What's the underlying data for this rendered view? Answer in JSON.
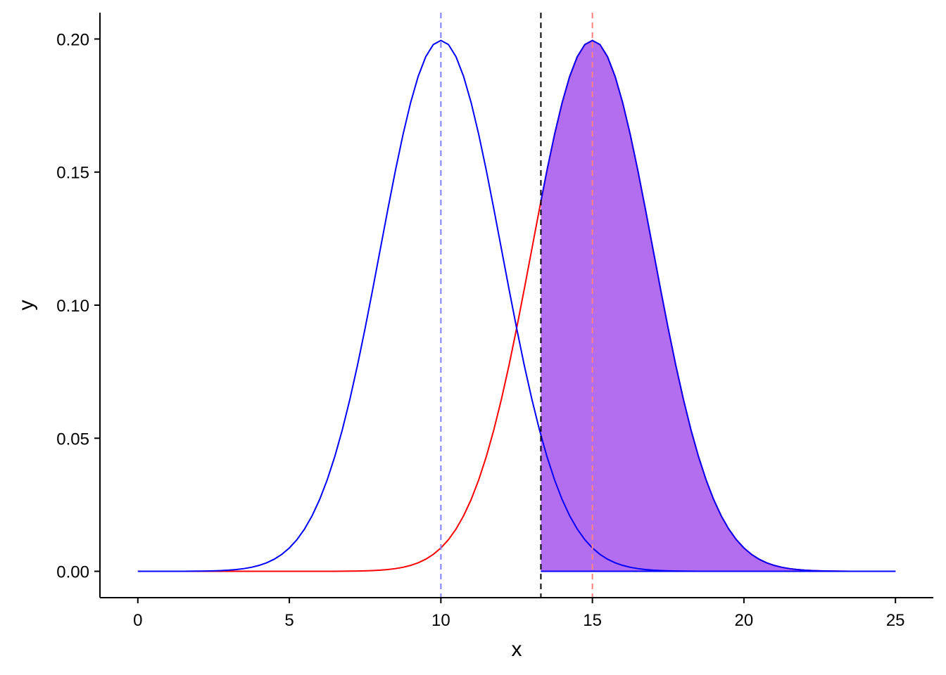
{
  "chart_data": {
    "type": "line",
    "xlabel": "x",
    "ylabel": "y",
    "xlim": [
      -1.25,
      26.25
    ],
    "ylim": [
      -0.0099,
      0.2099
    ],
    "x_ticks": [
      0,
      5,
      10,
      15,
      20,
      25
    ],
    "y_ticks": [
      0.0,
      0.05,
      0.1,
      0.15,
      0.2
    ],
    "x_tick_labels": [
      "0",
      "5",
      "10",
      "15",
      "20",
      "25"
    ],
    "y_tick_labels": [
      "0.00",
      "0.05",
      "0.10",
      "0.15",
      "0.20"
    ],
    "grid": false,
    "legend": "none",
    "series": [
      {
        "distribution": "normal",
        "mean": 10,
        "sd": 2,
        "x_range": [
          0,
          25
        ],
        "points": 101,
        "color": "#0000ff"
      },
      {
        "distribution": "normal",
        "mean": 15,
        "sd": 2,
        "x_range": [
          0,
          25
        ],
        "points": 101,
        "color": "#ff0000"
      }
    ],
    "shaded_region": {
      "under_series": 1,
      "from_x": 13.3,
      "to_x": 25,
      "fill": "#b36ef0",
      "outline": "#0000ff"
    },
    "vlines": [
      {
        "x": 10,
        "color": "#8080ff",
        "style": "dashed"
      },
      {
        "x": 13.3,
        "color": "#000000",
        "style": "dashed"
      },
      {
        "x": 15,
        "color": "#ff8080",
        "style": "dashed"
      }
    ]
  }
}
